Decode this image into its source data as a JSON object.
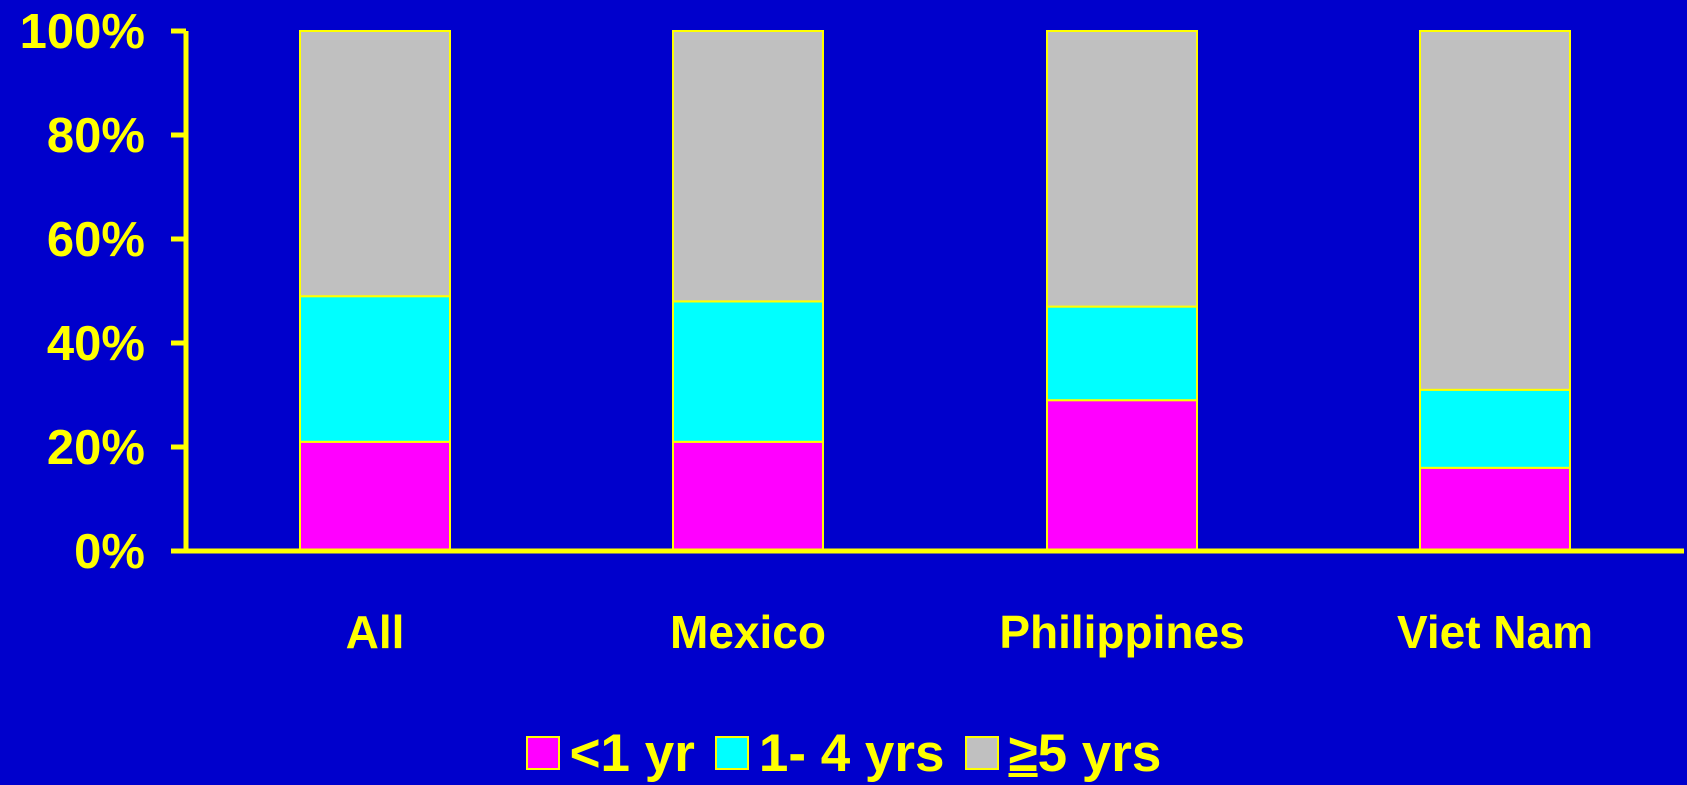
{
  "chart_data": {
    "type": "bar",
    "stacked": true,
    "percent_stacked": true,
    "title": "",
    "xlabel": "",
    "ylabel": "",
    "categories": [
      "All",
      "Mexico",
      "Philippines",
      "Viet Nam"
    ],
    "series": [
      {
        "name": "<1 yr",
        "values": [
          21,
          21,
          29,
          16
        ],
        "color": "#FF00FF"
      },
      {
        "name": "1- 4 yrs",
        "values": [
          28,
          27,
          18,
          15
        ],
        "color": "#00FFFF"
      },
      {
        "name": "≥5 yrs",
        "values": [
          51,
          52,
          53,
          69
        ],
        "color": "#C0C0C0"
      }
    ],
    "ylim": [
      0,
      100
    ],
    "y_ticks": [
      0,
      20,
      40,
      60,
      80,
      100
    ],
    "y_tick_labels": [
      "0%",
      "20%",
      "40%",
      "60%",
      "80%",
      "100%"
    ],
    "grid": false,
    "legend_position": "bottom-center",
    "colors": {
      "background": "#0000CC",
      "axis": "#FFFF00",
      "text": "#FFFF00",
      "bar_outline": "#FFFF00"
    }
  },
  "legend": {
    "items": [
      {
        "label": "<1 yr",
        "color": "#FF00FF"
      },
      {
        "label": "1- 4 yrs",
        "color": "#00FFFF"
      },
      {
        "label_prefix": "≥",
        "label_rest": "5 yrs",
        "color": "#C0C0C0"
      }
    ]
  }
}
